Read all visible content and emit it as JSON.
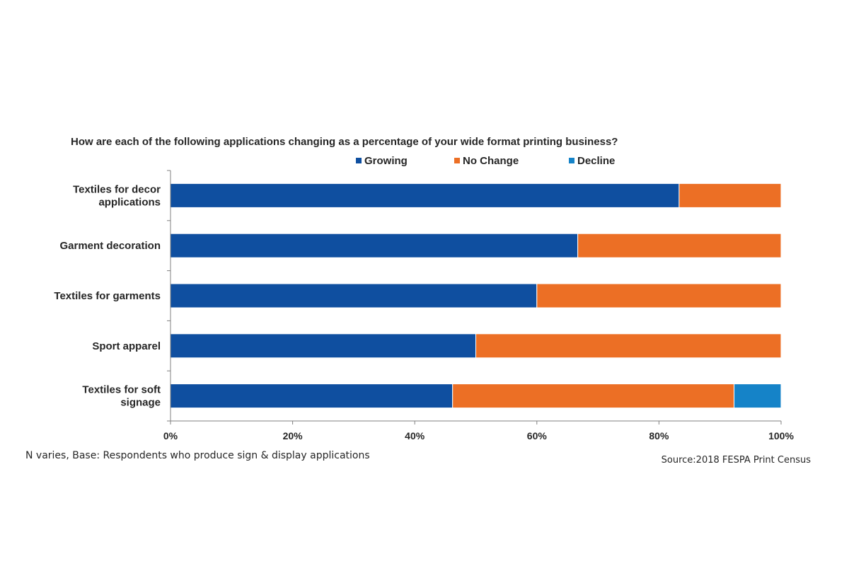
{
  "chart_data": {
    "type": "bar",
    "orientation": "horizontal",
    "stacked": "percent",
    "title": "How are each of the following applications changing as a percentage of your wide format printing business?",
    "categories": [
      "Textiles for decor applications",
      "Garment decoration",
      "Textiles for garments",
      "Sport apparel",
      "Textiles for soft signage"
    ],
    "category_lines": [
      [
        "Textiles for decor",
        "applications"
      ],
      [
        "Garment decoration"
      ],
      [
        "Textiles for garments"
      ],
      [
        "Sport apparel"
      ],
      [
        "Textiles for soft",
        "signage"
      ]
    ],
    "series": [
      {
        "name": "Growing",
        "color": "#0F4FA0",
        "values": [
          83.3,
          66.7,
          60.0,
          50.0,
          46.2
        ]
      },
      {
        "name": "No Change",
        "color": "#EC6F25",
        "values": [
          16.7,
          33.3,
          40.0,
          50.0,
          46.1
        ]
      },
      {
        "name": "Decline",
        "color": "#1583C8",
        "values": [
          0,
          0,
          0,
          0,
          7.7
        ]
      }
    ],
    "xlim": [
      0,
      100
    ],
    "xticks": [
      0,
      20,
      40,
      60,
      80,
      100
    ],
    "xtick_labels": [
      "0%",
      "20%",
      "40%",
      "60%",
      "80%",
      "100%"
    ],
    "legend_position": "top",
    "grid": false,
    "xlabel": "",
    "ylabel": ""
  },
  "footnote": "N varies, Base:  Respondents who produce sign & display applications",
  "source": "Source:2018 FESPA Print Census"
}
